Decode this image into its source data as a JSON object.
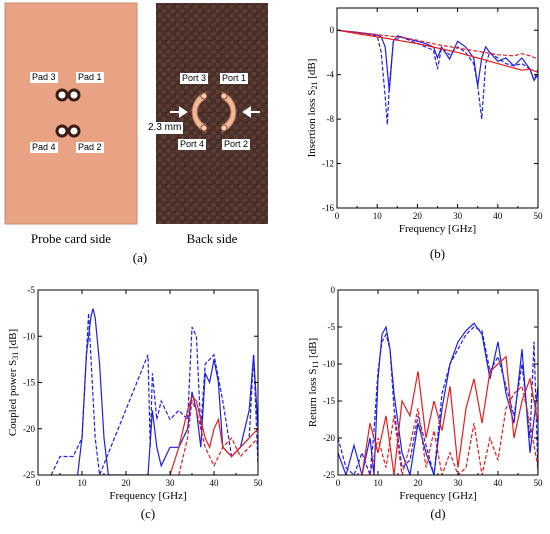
{
  "panel_a": {
    "probe_caption": "Probe card side",
    "back_caption": "Back side",
    "label": "(a)",
    "pads": [
      "Pad 3",
      "Pad 1",
      "Pad 4",
      "Pad 2"
    ],
    "ports": [
      "Port 3",
      "Port 1",
      "Port 4",
      "Port 2"
    ],
    "dimension": "2.3 mm"
  },
  "chart_data": [
    {
      "id": "b",
      "label": "(b)",
      "type": "line",
      "xlabel": "Frequency [GHz]",
      "ylabel": "Insertion loss S21 [dB]",
      "ylabel_main": "Insertion loss S",
      "ylabel_sub": "21",
      "ylabel_unit": " [dB]",
      "xlim": [
        0,
        50
      ],
      "ylim": [
        -16,
        2
      ],
      "xticks": [
        0,
        10,
        20,
        30,
        40,
        50
      ],
      "yticks": [
        0,
        -4,
        -8,
        -12,
        -16
      ],
      "grid": false,
      "series": [
        {
          "color": "#1f1fe6",
          "dash": false,
          "x": [
            0,
            5,
            10,
            11,
            12,
            13,
            14,
            15,
            18,
            20,
            22,
            24,
            25,
            26,
            28,
            30,
            32,
            34,
            35,
            36,
            37,
            38,
            40,
            42,
            44,
            46,
            48,
            49,
            50
          ],
          "y": [
            0,
            -0.2,
            -0.4,
            -0.6,
            -1.5,
            -5.5,
            -1,
            -0.5,
            -0.8,
            -1,
            -1.2,
            -1.5,
            -2.5,
            -1.5,
            -2.6,
            -1,
            -1.5,
            -2.5,
            -5,
            -2.5,
            -1.5,
            -2,
            -2.8,
            -2.5,
            -3.2,
            -2.5,
            -3.5,
            -4.5,
            -4
          ]
        },
        {
          "color": "#1f1fe6",
          "dash": true,
          "x": [
            0,
            5,
            10,
            11,
            12,
            12.5,
            13,
            14,
            16,
            18,
            20,
            22,
            24,
            25,
            26,
            28,
            30,
            32,
            34,
            35,
            36,
            37,
            38,
            40,
            42,
            44,
            46,
            48,
            49,
            50
          ],
          "y": [
            0,
            -0.2,
            -0.5,
            -2,
            -6,
            -8.5,
            -5,
            -1,
            -0.6,
            -0.9,
            -1.2,
            -1.5,
            -1.8,
            -3.5,
            -1.6,
            -2.2,
            -1.5,
            -2,
            -3,
            -5,
            -8,
            -3,
            -2,
            -2.5,
            -3,
            -3.2,
            -3,
            -3.5,
            -4.5,
            -3.5
          ]
        },
        {
          "color": "#e81e1e",
          "dash": false,
          "x": [
            0,
            5,
            10,
            15,
            20,
            25,
            30,
            35,
            38,
            40,
            42,
            44,
            46,
            48,
            50
          ],
          "y": [
            0,
            -0.3,
            -0.6,
            -0.9,
            -1.2,
            -1.6,
            -2,
            -2.5,
            -2.8,
            -3,
            -3.2,
            -3.4,
            -3.6,
            -3.5,
            -3.8
          ]
        },
        {
          "color": "#e81e1e",
          "dash": true,
          "x": [
            0,
            5,
            10,
            15,
            20,
            25,
            30,
            35,
            40,
            44,
            46,
            48,
            50
          ],
          "y": [
            0,
            -0.2,
            -0.4,
            -0.6,
            -0.9,
            -1.3,
            -1.6,
            -1.9,
            -2.2,
            -2.3,
            -2.1,
            -2.3,
            -2.6
          ]
        }
      ]
    },
    {
      "id": "c",
      "label": "(c)",
      "type": "line",
      "xlabel": "Frequency [GHz]",
      "ylabel": "Coupled power S31 [dB]",
      "ylabel_main": "Coupled power S",
      "ylabel_sub": "31",
      "ylabel_unit": " [dB]",
      "xlim": [
        0,
        50
      ],
      "ylim": [
        -25,
        -5
      ],
      "xticks": [
        0,
        10,
        20,
        30,
        40,
        50
      ],
      "yticks": [
        -5,
        -10,
        -15,
        -20,
        -25
      ],
      "grid": false,
      "series": [
        {
          "color": "#1f1fe6",
          "dash": false,
          "x": [
            9,
            10,
            11,
            12,
            12.5,
            13,
            14,
            15,
            16,
            25,
            26,
            27,
            28,
            30,
            32,
            34,
            35,
            36,
            37,
            38,
            39,
            40,
            41,
            42,
            44,
            46,
            48,
            49,
            50
          ],
          "y": [
            -25,
            -21,
            -12,
            -8,
            -7,
            -8,
            -13,
            -21,
            -25,
            -25,
            -18,
            -22,
            -24,
            -22,
            -22,
            -20,
            -16,
            -18,
            -22,
            -14,
            -15,
            -12.5,
            -15,
            -22,
            -23,
            -22,
            -18,
            -12,
            -20
          ]
        },
        {
          "color": "#1f1fe6",
          "dash": true,
          "x": [
            3,
            5,
            8,
            10,
            11,
            11.5,
            12,
            13,
            14,
            25,
            25.5,
            26,
            27,
            28,
            30,
            32,
            34,
            35,
            36,
            37,
            38,
            40,
            42,
            44,
            46,
            48,
            49,
            50
          ],
          "y": [
            -25,
            -23,
            -23,
            -21,
            -12,
            -7.5,
            -12,
            -21,
            -25,
            -12,
            -22,
            -14,
            -19,
            -17,
            -19,
            -18,
            -19,
            -9,
            -10,
            -20,
            -13,
            -12,
            -17,
            -23,
            -22,
            -21,
            -12,
            -24
          ]
        },
        {
          "color": "#e81e1e",
          "dash": false,
          "x": [
            30,
            32,
            34,
            35,
            36,
            37,
            38,
            39,
            40,
            41,
            42,
            44,
            46,
            48,
            50
          ],
          "y": [
            -25,
            -22,
            -18,
            -16.5,
            -17,
            -19,
            -21,
            -22,
            -20,
            -19,
            -22,
            -23,
            -22,
            -21,
            -20
          ]
        },
        {
          "color": "#e81e1e",
          "dash": true,
          "x": [
            32,
            34,
            35,
            36,
            38,
            40,
            42,
            44,
            46,
            48,
            50
          ],
          "y": [
            -25,
            -21,
            -17,
            -18,
            -22,
            -24,
            -22,
            -21,
            -23,
            -22,
            -21
          ]
        }
      ]
    },
    {
      "id": "d",
      "label": "(d)",
      "type": "line",
      "xlabel": "Frequency [GHz]",
      "ylabel": "Return loss S11 [dB]",
      "ylabel_main": "Return loss S",
      "ylabel_sub": "11",
      "ylabel_unit": " [dB]",
      "xlim": [
        0,
        50
      ],
      "ylim": [
        -25,
        0
      ],
      "xticks": [
        0,
        10,
        20,
        30,
        40,
        50
      ],
      "yticks": [
        0,
        -5,
        -10,
        -15,
        -20,
        -25
      ],
      "grid": false,
      "series": [
        {
          "color": "#1f1fe6",
          "dash": false,
          "x": [
            0,
            2,
            4,
            6,
            8,
            9,
            10,
            11,
            12,
            13,
            14,
            16,
            18,
            20,
            22,
            24,
            26,
            28,
            30,
            32,
            34,
            36,
            38,
            40,
            42,
            44,
            46,
            48,
            50
          ],
          "y": [
            -22,
            -25,
            -21,
            -25,
            -20,
            -25,
            -12,
            -6,
            -5,
            -8,
            -14,
            -22,
            -25,
            -18,
            -22,
            -25,
            -16,
            -10,
            -7,
            -5.5,
            -4.5,
            -6,
            -12,
            -7,
            -14,
            -18,
            -8,
            -22,
            -13
          ]
        },
        {
          "color": "#1f1fe6",
          "dash": true,
          "x": [
            0,
            2,
            4,
            6,
            8,
            9,
            10,
            11,
            12,
            13,
            14,
            16,
            18,
            20,
            22,
            24,
            26,
            28,
            30,
            32,
            34,
            36,
            38,
            40,
            42,
            44,
            46,
            48,
            49,
            50
          ],
          "y": [
            -20,
            -24,
            -25,
            -22,
            -25,
            -19,
            -11,
            -7,
            -6,
            -8,
            -16,
            -24,
            -23,
            -17,
            -21,
            -25,
            -14,
            -10,
            -8,
            -6,
            -5,
            -5.5,
            -11,
            -9,
            -13,
            -17,
            -10,
            -20,
            -7,
            -25
          ]
        },
        {
          "color": "#e81e1e",
          "dash": false,
          "x": [
            6,
            8,
            10,
            12,
            14,
            16,
            18,
            20,
            22,
            24,
            26,
            28,
            30,
            32,
            34,
            36,
            38,
            40,
            42,
            44,
            46,
            48,
            50
          ],
          "y": [
            -25,
            -18,
            -22,
            -17,
            -25,
            -15,
            -17,
            -11,
            -20,
            -15,
            -19,
            -13,
            -24,
            -16,
            -12,
            -18,
            -11,
            -10,
            -9,
            -20,
            -15,
            -12,
            -18
          ]
        },
        {
          "color": "#e81e1e",
          "dash": true,
          "x": [
            8,
            10,
            12,
            14,
            16,
            18,
            20,
            22,
            24,
            26,
            28,
            30,
            32,
            34,
            36,
            38,
            40,
            42,
            44,
            46,
            48,
            50
          ],
          "y": [
            -25,
            -20,
            -24,
            -17,
            -25,
            -21,
            -16,
            -24,
            -19,
            -25,
            -22,
            -25,
            -24,
            -18,
            -25,
            -20,
            -23,
            -16,
            -14,
            -13,
            -18,
            -24
          ]
        }
      ]
    }
  ]
}
